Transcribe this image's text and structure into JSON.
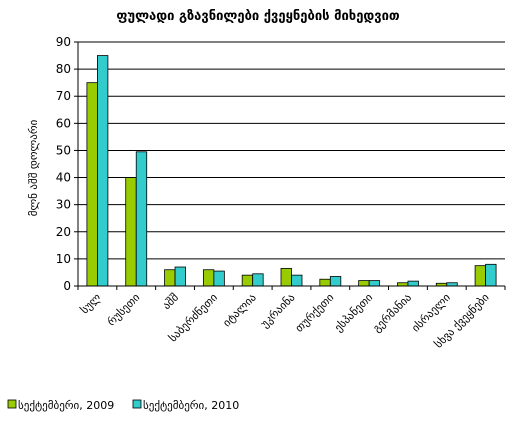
{
  "chart_data": {
    "type": "bar",
    "title": "ფულადი გზავნილები ქვეყნების მიხედვით",
    "ylabel": "მლნ აშშ დოლარი",
    "xlabel": "",
    "ylim": [
      0,
      90
    ],
    "yticks": [
      0,
      10,
      20,
      30,
      40,
      50,
      60,
      70,
      80,
      90
    ],
    "categories": [
      "სულ",
      "რუსეთი",
      "აშშ",
      "საბერძნეთი",
      "იტალია",
      "უკრაინა",
      "თურქეთი",
      "ესპანეთი",
      "გერმანია",
      "ისრაელი",
      "სხვა ქვეყნები"
    ],
    "series": [
      {
        "name": "სექტემბერი, 2009",
        "color": "#99cc00",
        "values": [
          75,
          40,
          6,
          6,
          4,
          6.5,
          2.5,
          2,
          1.2,
          1,
          7.5
        ]
      },
      {
        "name": "სექტემბერი, 2010",
        "color": "#33cccc",
        "values": [
          85,
          49.5,
          7,
          5.5,
          4.5,
          4,
          3.5,
          2,
          1.8,
          1.2,
          8
        ]
      }
    ],
    "grid": true,
    "legend_position": "bottom-left"
  }
}
